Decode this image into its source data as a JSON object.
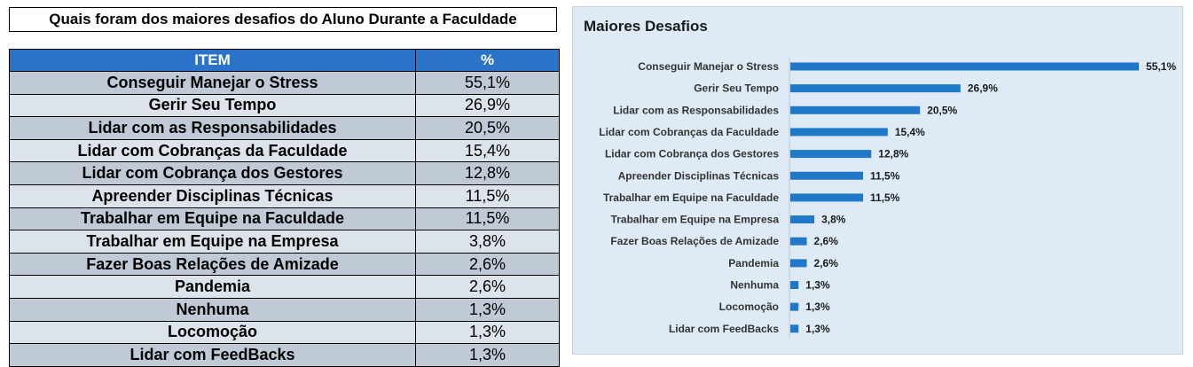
{
  "table": {
    "title": "Quais foram dos maiores desafios do Aluno Durante a Faculdade",
    "header_item": "ITEM",
    "header_pct": "%",
    "rows": [
      {
        "item": "Conseguir Manejar o Stress",
        "pct": "55,1%"
      },
      {
        "item": "Gerir Seu Tempo",
        "pct": "26,9%"
      },
      {
        "item": "Lidar com as Responsabilidades",
        "pct": "20,5%"
      },
      {
        "item": "Lidar com Cobranças da Faculdade",
        "pct": "15,4%"
      },
      {
        "item": "Lidar com Cobrança dos Gestores",
        "pct": "12,8%"
      },
      {
        "item": "Apreender Disciplinas Técnicas",
        "pct": "11,5%"
      },
      {
        "item": "Trabalhar em Equipe na Faculdade",
        "pct": "11,5%"
      },
      {
        "item": "Trabalhar em Equipe na Empresa",
        "pct": "3,8%"
      },
      {
        "item": "Fazer Boas Relações de Amizade",
        "pct": "2,6%"
      },
      {
        "item": "Pandemia",
        "pct": "2,6%"
      },
      {
        "item": "Nenhuma",
        "pct": "1,3%"
      },
      {
        "item": "Locomoção",
        "pct": "1,3%"
      },
      {
        "item": "Lidar com FeedBacks",
        "pct": "1,3%"
      }
    ]
  },
  "chart_data": {
    "type": "bar",
    "orientation": "horizontal",
    "title": "Maiores Desafios",
    "categories": [
      "Conseguir Manejar o Stress",
      "Gerir Seu Tempo",
      "Lidar com as Responsabilidades",
      "Lidar com Cobranças da Faculdade",
      "Lidar com Cobrança dos Gestores",
      "Apreender Disciplinas Técnicas",
      "Trabalhar em Equipe na Faculdade",
      "Trabalhar em Equipe na Empresa",
      "Fazer Boas Relações de Amizade",
      "Pandemia",
      "Nenhuma",
      "Locomoção",
      "Lidar com FeedBacks"
    ],
    "values": [
      55.1,
      26.9,
      20.5,
      15.4,
      12.8,
      11.5,
      11.5,
      3.8,
      2.6,
      2.6,
      1.3,
      1.3,
      1.3
    ],
    "data_labels": [
      "55,1%",
      "26,9%",
      "20,5%",
      "15,4%",
      "12,8%",
      "11,5%",
      "11,5%",
      "3,8%",
      "2,6%",
      "2,6%",
      "1,3%",
      "1,3%",
      "1,3%"
    ],
    "xlim": [
      0,
      55.1
    ],
    "grid": false,
    "legend": "none",
    "bar_color": "#1f78c8",
    "panel_color": "#deebf7"
  }
}
